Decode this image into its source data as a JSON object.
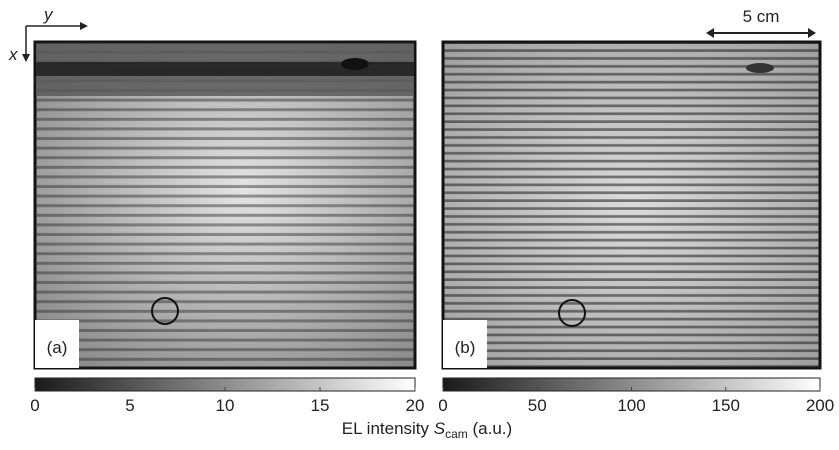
{
  "axes_indicator": {
    "y": "y",
    "x": "x"
  },
  "scale_bar": "5 cm",
  "panels": [
    {
      "label": "(a)",
      "colorbar": {
        "lim": [
          0,
          20
        ],
        "ticks": [
          0,
          5,
          10,
          15,
          20
        ]
      }
    },
    {
      "label": "(b)",
      "colorbar": {
        "lim": [
          0,
          200
        ],
        "ticks": [
          0,
          50,
          100,
          150,
          200
        ]
      }
    }
  ],
  "colorbar_title": {
    "prefix": "EL intensity",
    "symbol": "S",
    "subscript": "cam",
    "unit": "(a.u.)"
  }
}
